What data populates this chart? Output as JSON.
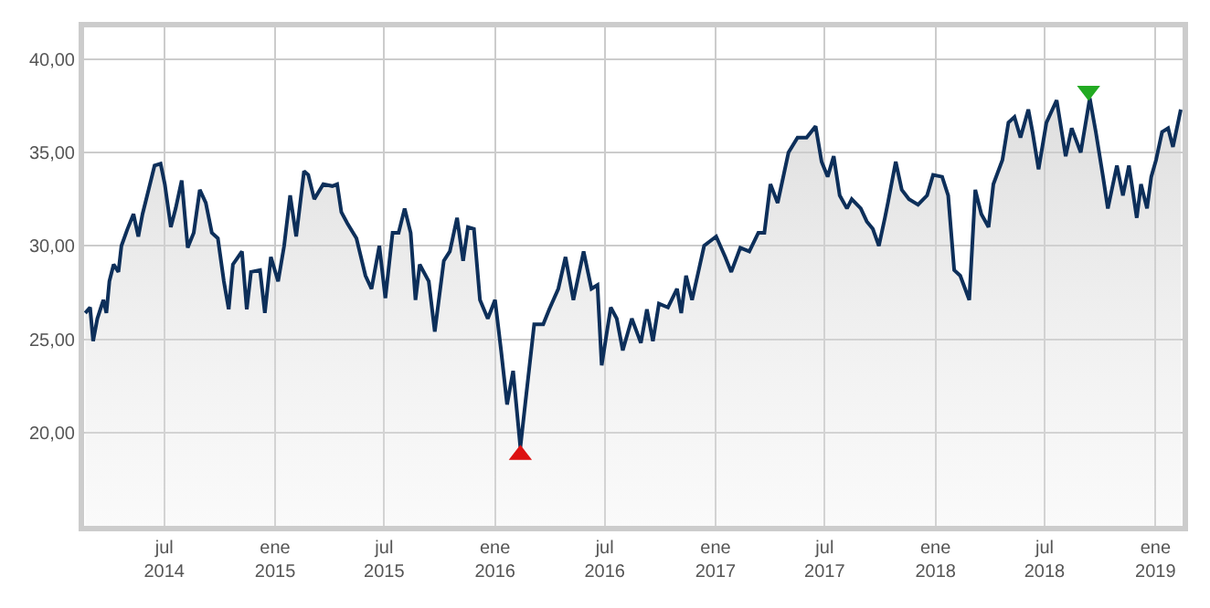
{
  "chart_data": {
    "type": "area",
    "grid": true,
    "xlim": [
      "2014-02-18",
      "2019-02-15"
    ],
    "ylim": [
      15,
      41.7
    ],
    "xticks": [
      {
        "value": "2014-07-01",
        "label": "jul\n2014"
      },
      {
        "value": "2015-01-01",
        "label": "ene\n2015"
      },
      {
        "value": "2015-07-01",
        "label": "jul\n2015"
      },
      {
        "value": "2016-01-01",
        "label": "ene\n2016"
      },
      {
        "value": "2016-07-01",
        "label": "jul\n2016"
      },
      {
        "value": "2017-01-01",
        "label": "ene\n2017"
      },
      {
        "value": "2017-07-01",
        "label": "jul\n2017"
      },
      {
        "value": "2018-01-01",
        "label": "ene\n2018"
      },
      {
        "value": "2018-07-01",
        "label": "jul\n2018"
      },
      {
        "value": "2019-01-01",
        "label": "ene\n2019"
      }
    ],
    "yticks": [
      {
        "value": 20,
        "label": "20,00"
      },
      {
        "value": 25,
        "label": "25,00"
      },
      {
        "value": 30,
        "label": "30,00"
      },
      {
        "value": 35,
        "label": "35,00"
      },
      {
        "value": 40,
        "label": "40,00"
      }
    ],
    "series": [
      {
        "color": "#0d2f5a",
        "x": [
          "2014-02-20",
          "2014-02-28",
          "2014-03-05",
          "2014-03-12",
          "2014-03-22",
          "2014-03-27",
          "2014-04-01",
          "2014-04-08",
          "2014-04-16",
          "2014-04-21",
          "2014-05-01",
          "2014-05-11",
          "2014-05-19",
          "2014-05-26",
          "2014-06-05",
          "2014-06-15",
          "2014-06-25",
          "2014-07-02",
          "2014-07-12",
          "2014-07-20",
          "2014-07-30",
          "2014-08-09",
          "2014-08-19",
          "2014-08-29",
          "2014-09-08",
          "2014-09-18",
          "2014-09-28",
          "2014-10-08",
          "2014-10-16",
          "2014-10-23",
          "2014-11-07",
          "2014-11-15",
          "2014-11-22",
          "2014-12-07",
          "2014-12-15",
          "2014-12-25",
          "2015-01-06",
          "2015-01-16",
          "2015-01-26",
          "2015-02-05",
          "2015-02-18",
          "2015-02-25",
          "2015-03-07",
          "2015-03-22",
          "2015-04-06",
          "2015-04-14",
          "2015-04-21",
          "2015-05-01",
          "2015-05-16",
          "2015-05-31",
          "2015-06-10",
          "2015-06-23",
          "2015-07-03",
          "2015-07-15",
          "2015-07-25",
          "2015-08-04",
          "2015-08-14",
          "2015-08-22",
          "2015-08-29",
          "2015-09-13",
          "2015-09-23",
          "2015-10-08",
          "2015-10-18",
          "2015-10-30",
          "2015-11-09",
          "2015-11-17",
          "2015-11-27",
          "2015-12-07",
          "2015-12-20",
          "2016-01-01",
          "2016-01-11",
          "2016-01-21",
          "2016-01-31",
          "2016-02-12",
          "2016-02-20",
          "2016-03-06",
          "2016-03-21",
          "2016-03-31",
          "2016-04-15",
          "2016-04-27",
          "2016-05-10",
          "2016-05-27",
          "2016-06-09",
          "2016-06-19",
          "2016-06-26",
          "2016-07-11",
          "2016-07-21",
          "2016-07-31",
          "2016-08-15",
          "2016-08-30",
          "2016-09-09",
          "2016-09-19",
          "2016-09-29",
          "2016-10-14",
          "2016-10-29",
          "2016-11-05",
          "2016-11-13",
          "2016-11-23",
          "2016-12-13",
          "2017-01-02",
          "2017-01-17",
          "2017-01-27",
          "2017-02-11",
          "2017-02-26",
          "2017-03-13",
          "2017-03-23",
          "2017-04-02",
          "2017-04-14",
          "2017-05-02",
          "2017-05-17",
          "2017-06-01",
          "2017-06-16",
          "2017-06-26",
          "2017-07-06",
          "2017-07-16",
          "2017-07-26",
          "2017-08-07",
          "2017-08-15",
          "2017-08-30",
          "2017-09-09",
          "2017-09-19",
          "2017-09-29",
          "2017-10-09",
          "2017-10-14",
          "2017-10-27",
          "2017-11-06",
          "2017-11-18",
          "2017-12-03",
          "2017-12-18",
          "2017-12-28",
          "2018-01-12",
          "2018-01-22",
          "2018-02-01",
          "2018-02-11",
          "2018-02-26",
          "2018-03-08",
          "2018-03-18",
          "2018-03-30",
          "2018-04-07",
          "2018-04-22",
          "2018-05-02",
          "2018-05-12",
          "2018-05-22",
          "2018-06-04",
          "2018-06-11",
          "2018-06-21",
          "2018-07-04",
          "2018-07-21",
          "2018-08-05",
          "2018-08-15",
          "2018-08-30",
          "2018-09-14",
          "2018-09-24",
          "2018-10-06",
          "2018-10-14",
          "2018-10-29",
          "2018-11-08",
          "2018-11-18",
          "2018-12-01",
          "2018-12-08",
          "2018-12-18",
          "2018-12-25",
          "2019-01-02",
          "2019-01-12",
          "2019-01-22",
          "2019-01-30",
          "2019-02-12"
        ],
        "values": [
          26.4,
          26.7,
          24.9,
          26.1,
          27.1,
          26.4,
          28.1,
          29.0,
          28.6,
          30.0,
          30.9,
          31.7,
          30.5,
          31.7,
          33.0,
          34.3,
          34.4,
          33.3,
          31.0,
          32.0,
          33.5,
          29.9,
          30.7,
          33.0,
          32.3,
          30.7,
          30.4,
          28.1,
          26.6,
          29.0,
          29.7,
          26.6,
          28.6,
          28.7,
          26.4,
          29.4,
          28.1,
          30.0,
          32.7,
          30.5,
          34.0,
          33.8,
          32.5,
          33.3,
          33.2,
          33.3,
          31.8,
          31.2,
          30.4,
          28.4,
          27.7,
          30.0,
          27.2,
          30.7,
          30.7,
          32.0,
          30.7,
          27.1,
          29.0,
          28.1,
          25.4,
          29.2,
          29.7,
          31.5,
          29.2,
          31.0,
          30.9,
          27.1,
          26.1,
          27.1,
          24.4,
          21.5,
          23.3,
          19.2,
          21.5,
          25.8,
          25.8,
          26.6,
          27.7,
          29.4,
          27.1,
          29.7,
          27.7,
          27.9,
          23.6,
          26.7,
          26.1,
          24.4,
          26.1,
          24.8,
          26.6,
          24.9,
          26.9,
          26.7,
          27.7,
          26.4,
          28.4,
          27.1,
          30.0,
          30.5,
          29.4,
          28.6,
          29.9,
          29.7,
          30.7,
          30.7,
          33.3,
          32.3,
          35.0,
          35.8,
          35.8,
          36.4,
          34.5,
          33.7,
          34.8,
          32.7,
          32.0,
          32.5,
          32.0,
          31.3,
          30.9,
          30.0,
          31.5,
          32.3,
          34.5,
          33.0,
          32.5,
          32.2,
          32.7,
          33.8,
          33.7,
          32.7,
          28.7,
          28.4,
          27.1,
          33.0,
          31.7,
          31.0,
          33.3,
          34.6,
          36.6,
          36.9,
          35.8,
          37.3,
          36.1,
          34.1,
          36.6,
          37.8,
          34.8,
          36.3,
          35.0,
          37.9,
          36.1,
          33.7,
          32.0,
          34.3,
          32.7,
          34.3,
          31.5,
          33.3,
          32.0,
          33.7,
          34.6,
          36.1,
          36.3,
          35.3,
          37.3
        ]
      },
      {
        "type": "scatter",
        "marker": "triangle",
        "color": "#dd1111",
        "x": [
          "2016-02-12"
        ],
        "values": [
          18.8
        ]
      },
      {
        "type": "scatter",
        "marker": "triangle",
        "color": "#22aa22",
        "x": [
          "2018-09-12"
        ],
        "values": [
          38.3
        ]
      }
    ]
  }
}
